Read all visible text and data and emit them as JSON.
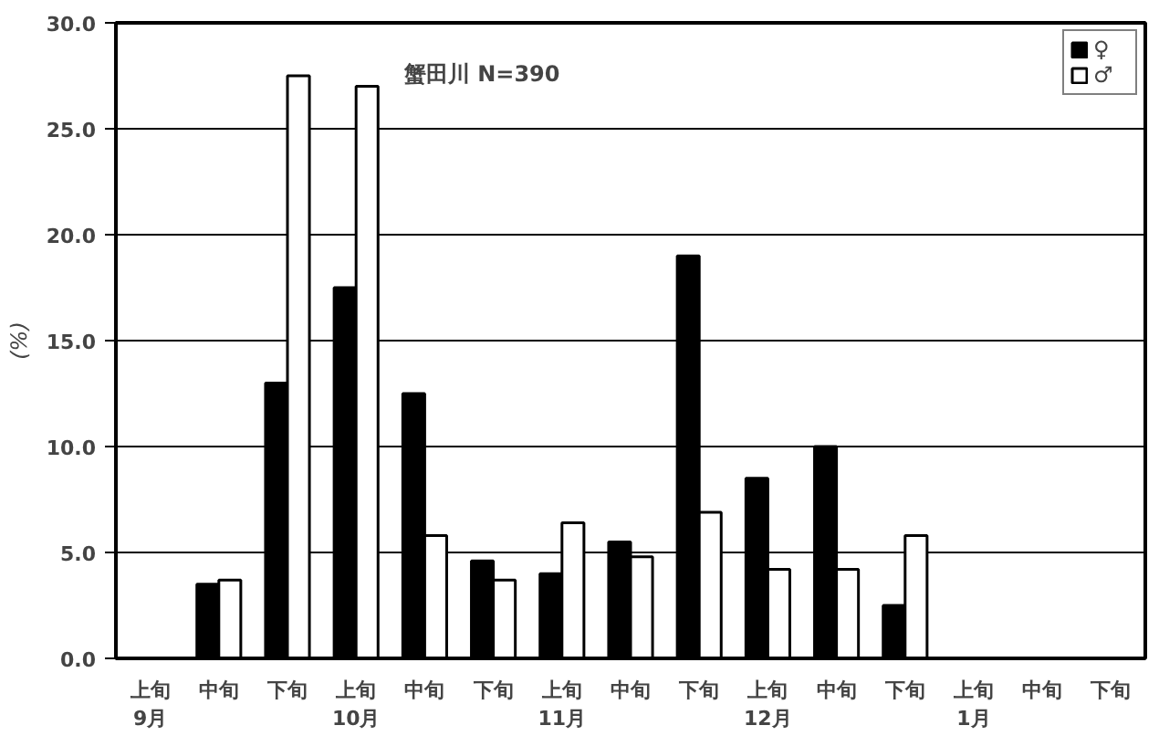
{
  "chart_data": {
    "type": "bar",
    "ylabel": "(%)",
    "annotations": [
      "蟹田川 N=390"
    ],
    "categories": [
      "上旬\n9月",
      "中旬",
      "下旬",
      "上旬\n10月",
      "中旬",
      "下旬",
      "上旬\n11月",
      "中旬",
      "下旬",
      "上旬\n12月",
      "中旬",
      "下旬",
      "上旬\n1月",
      "中旬",
      "下旬"
    ],
    "series": [
      {
        "name": "♀",
        "color": "#000000",
        "values": [
          null,
          3.5,
          13.0,
          17.5,
          12.5,
          4.6,
          4.0,
          5.5,
          19.0,
          8.5,
          10.0,
          2.5,
          null,
          null,
          null
        ]
      },
      {
        "name": "♂",
        "color": "#ffffff",
        "values": [
          null,
          3.7,
          27.5,
          27.0,
          5.8,
          3.7,
          6.4,
          4.8,
          6.9,
          4.2,
          4.2,
          5.8,
          null,
          null,
          null
        ]
      }
    ],
    "ylim": [
      0,
      30
    ],
    "yticks": [
      {
        "value": 0,
        "label": "0.0"
      },
      {
        "value": 5,
        "label": "5.0"
      },
      {
        "value": 10,
        "label": "10.0"
      },
      {
        "value": 15,
        "label": "15.0"
      },
      {
        "value": 20,
        "label": "20.0"
      },
      {
        "value": 25,
        "label": "25.0"
      },
      {
        "value": 30,
        "label": "30.0"
      }
    ],
    "grid": "y",
    "legend": "top right"
  }
}
